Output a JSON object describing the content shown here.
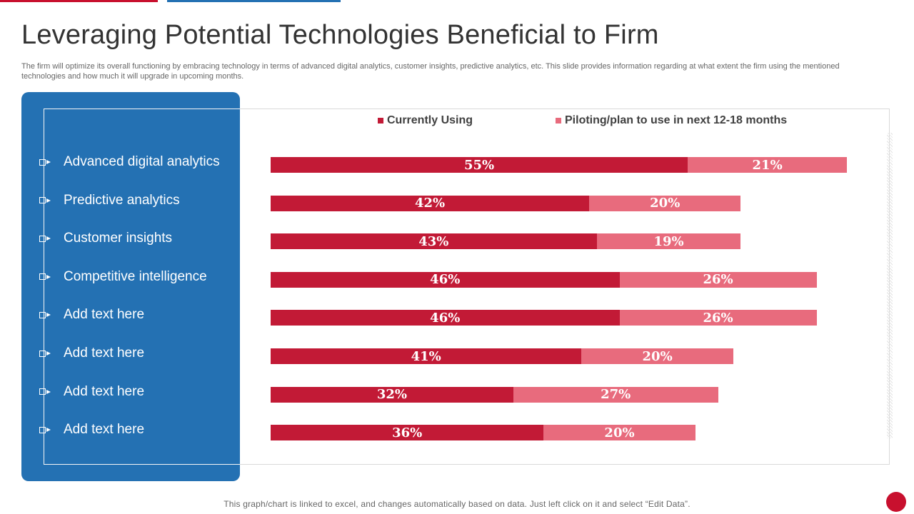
{
  "title": "Leveraging Potential Technologies Beneficial to Firm",
  "subtitle": "The firm will optimize its overall functioning by embracing technology in terms of advanced digital analytics, customer insights, predictive analytics, etc. This slide provides information regarding at what extent the firm using the mentioned technologies and how much it will upgrade in upcoming months.",
  "footnote": "This graph/chart is linked to excel, and changes automatically based on data. Just left click on it and select “Edit Data”.",
  "colors": {
    "currently": "#c21a36",
    "piloting": "#e86b7d",
    "panel": "#2471b3",
    "accent_red": "#c8102e"
  },
  "chart_data": {
    "type": "bar",
    "orientation": "horizontal",
    "stacked": true,
    "categories": [
      "Advanced digital analytics",
      "Predictive analytics",
      "Customer insights",
      "Competitive intelligence",
      "Add text here",
      "Add text here",
      "Add text here",
      "Add text here"
    ],
    "series": [
      {
        "name": "Currently Using",
        "values": [
          55,
          42,
          43,
          46,
          46,
          41,
          32,
          36
        ],
        "labels": [
          "55%",
          "42%",
          "43%",
          "46%",
          "46%",
          "41%",
          "32%",
          "36%"
        ]
      },
      {
        "name": "Piloting/plan to use in next 12-18 months",
        "values": [
          21,
          20,
          19,
          26,
          26,
          20,
          27,
          20
        ],
        "labels": [
          "21%",
          "20%",
          "19%",
          "26%",
          "26%",
          "20%",
          "27%",
          "20%"
        ]
      }
    ],
    "xlim": [
      0,
      100
    ],
    "legend_position": "top",
    "grid": false
  }
}
